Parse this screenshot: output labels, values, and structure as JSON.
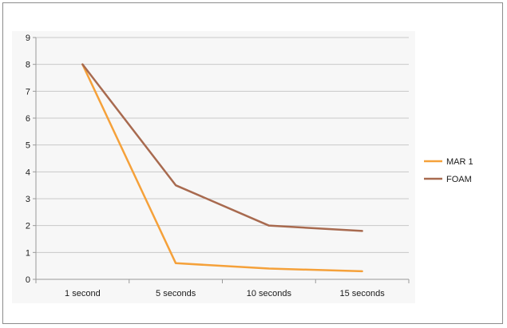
{
  "chart_data": {
    "type": "line",
    "categories": [
      "1 second",
      "5 seconds",
      "10 seconds",
      "15 seconds"
    ],
    "series": [
      {
        "name": "MAR 1",
        "values": [
          8,
          0.6,
          0.4,
          0.3
        ],
        "color": "#f5a13a"
      },
      {
        "name": "FOAM",
        "values": [
          8,
          3.5,
          2.0,
          1.8
        ],
        "color": "#a86a4f"
      }
    ],
    "title": "",
    "xlabel": "",
    "ylabel": "",
    "ylim": [
      0,
      9
    ],
    "yticks": [
      0,
      1,
      2,
      3,
      4,
      5,
      6,
      7,
      8,
      9
    ],
    "grid": true,
    "legend_position": "right",
    "plot_background": "#f7f7f7",
    "gridline_color": "#c8c8c8"
  }
}
